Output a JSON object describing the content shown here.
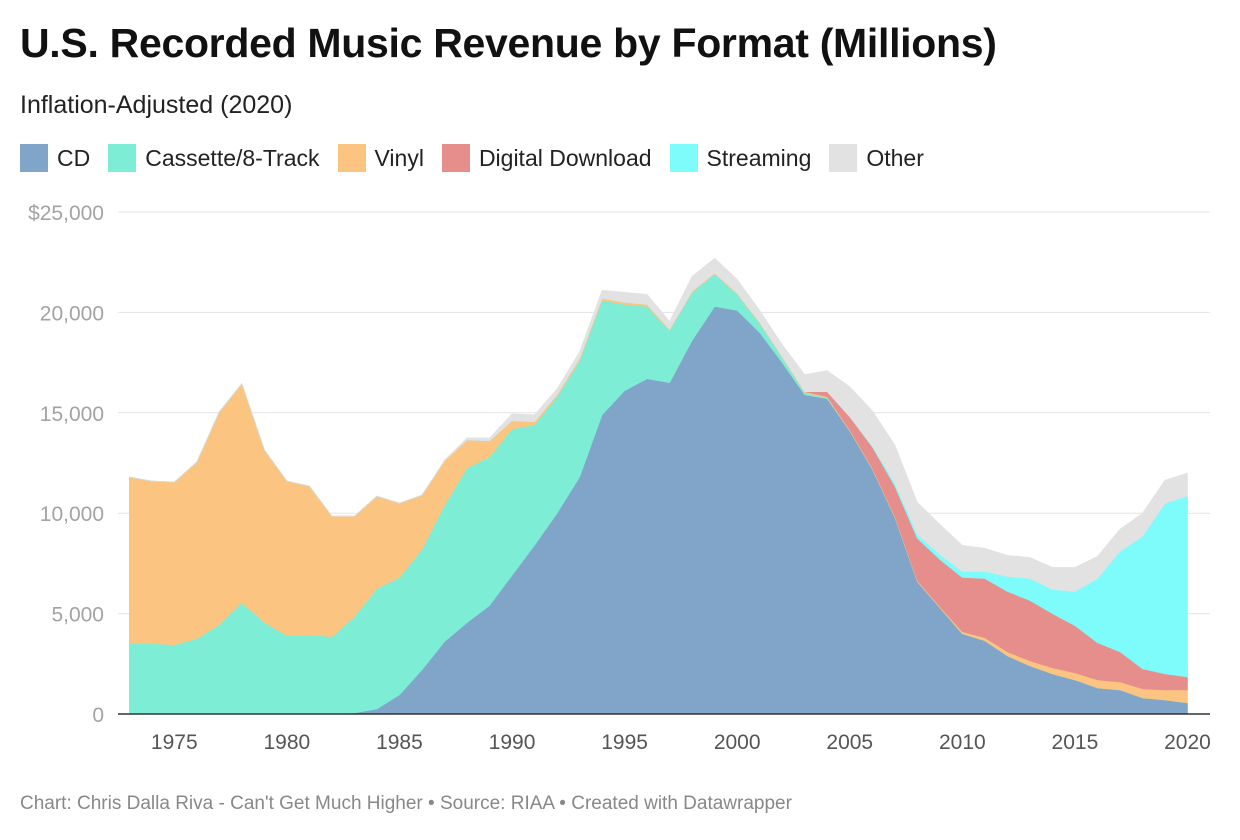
{
  "title": "U.S. Recorded Music Revenue by Format (Millions)",
  "subtitle": "Inflation-Adjusted (2020)",
  "footer": "Chart: Chris Dalla Riva - Can't Get Much Higher • Source: RIAA • Created with Datawrapper",
  "chart_data": {
    "type": "area",
    "stacked": true,
    "title": "U.S. Recorded Music Revenue by Format (Millions)",
    "subtitle": "Inflation-Adjusted (2020)",
    "x": [
      1973,
      1974,
      1975,
      1976,
      1977,
      1978,
      1979,
      1980,
      1981,
      1982,
      1983,
      1984,
      1985,
      1986,
      1987,
      1988,
      1989,
      1990,
      1991,
      1992,
      1993,
      1994,
      1995,
      1996,
      1997,
      1998,
      1999,
      2000,
      2001,
      2002,
      2003,
      2004,
      2005,
      2006,
      2007,
      2008,
      2009,
      2010,
      2011,
      2012,
      2013,
      2014,
      2015,
      2016,
      2017,
      2018,
      2019,
      2020
    ],
    "xlim": [
      1972.5,
      2021
    ],
    "ylim": [
      0,
      25000
    ],
    "y_ticks": [
      {
        "value": 0,
        "label": "0"
      },
      {
        "value": 5000,
        "label": "5,000"
      },
      {
        "value": 10000,
        "label": "10,000"
      },
      {
        "value": 15000,
        "label": "15,000"
      },
      {
        "value": 20000,
        "label": "20,000"
      },
      {
        "value": 25000,
        "label": "$25,000"
      }
    ],
    "x_ticks": [
      {
        "value": 1975,
        "label": "1975"
      },
      {
        "value": 1980,
        "label": "1980"
      },
      {
        "value": 1985,
        "label": "1985"
      },
      {
        "value": 1990,
        "label": "1990"
      },
      {
        "value": 1995,
        "label": "1995"
      },
      {
        "value": 2000,
        "label": "2000"
      },
      {
        "value": 2005,
        "label": "2005"
      },
      {
        "value": 2010,
        "label": "2010"
      },
      {
        "value": 2015,
        "label": "2015"
      },
      {
        "value": 2020,
        "label": "2020"
      }
    ],
    "grid": true,
    "legend_position": "top-left",
    "series": [
      {
        "name": "CD",
        "color": "#80a5c9",
        "values": [
          0,
          0,
          0,
          0,
          0,
          0,
          0,
          0,
          0,
          0,
          50,
          250,
          950,
          2200,
          3600,
          4550,
          5400,
          6900,
          8400,
          10000,
          11800,
          14900,
          16100,
          16700,
          16500,
          18600,
          20300,
          20100,
          19000,
          17500,
          15900,
          15700,
          14100,
          12200,
          9800,
          6600,
          5300,
          4000,
          3650,
          2900,
          2400,
          2000,
          1700,
          1300,
          1200,
          800,
          700,
          550
        ]
      },
      {
        "name": "Cassette/8-Track",
        "color": "#7deed5",
        "values": [
          3500,
          3500,
          3450,
          3750,
          4450,
          5550,
          4550,
          3900,
          3950,
          3850,
          4800,
          6000,
          5850,
          6000,
          6800,
          7700,
          7400,
          7300,
          6000,
          5800,
          5800,
          5700,
          4300,
          3600,
          2600,
          2400,
          1600,
          800,
          450,
          250,
          100,
          50,
          0,
          0,
          0,
          0,
          0,
          0,
          0,
          0,
          0,
          0,
          0,
          0,
          0,
          0,
          0,
          0
        ]
      },
      {
        "name": "Vinyl",
        "color": "#fbc581",
        "values": [
          8300,
          8100,
          8100,
          8800,
          10600,
          10900,
          8600,
          7700,
          7400,
          6000,
          5000,
          4600,
          3700,
          2700,
          2200,
          1400,
          800,
          400,
          150,
          100,
          100,
          100,
          100,
          100,
          50,
          50,
          50,
          50,
          50,
          50,
          50,
          50,
          50,
          50,
          50,
          50,
          50,
          100,
          150,
          200,
          250,
          300,
          350,
          400,
          400,
          450,
          500,
          650
        ]
      },
      {
        "name": "Digital Download",
        "color": "#e58e8b",
        "values": [
          0,
          0,
          0,
          0,
          0,
          0,
          0,
          0,
          0,
          0,
          0,
          0,
          0,
          0,
          0,
          0,
          0,
          0,
          0,
          0,
          0,
          0,
          0,
          0,
          0,
          0,
          0,
          0,
          0,
          0,
          0,
          250,
          650,
          1050,
          1500,
          2100,
          2350,
          2700,
          2950,
          3000,
          3000,
          2700,
          2350,
          1850,
          1500,
          1000,
          800,
          650
        ]
      },
      {
        "name": "Streaming",
        "color": "#7dfcfb",
        "values": [
          0,
          0,
          0,
          0,
          0,
          0,
          0,
          0,
          0,
          0,
          0,
          0,
          0,
          0,
          0,
          0,
          0,
          0,
          0,
          0,
          0,
          0,
          0,
          0,
          0,
          0,
          0,
          0,
          0,
          0,
          0,
          0,
          0,
          50,
          150,
          200,
          250,
          300,
          350,
          750,
          1100,
          1200,
          1700,
          3200,
          5000,
          6600,
          8500,
          9000
        ]
      },
      {
        "name": "Other",
        "color": "#e2e2e2",
        "values": [
          0,
          0,
          0,
          0,
          0,
          0,
          0,
          0,
          0,
          0,
          0,
          0,
          0,
          0,
          50,
          100,
          150,
          350,
          350,
          300,
          350,
          400,
          500,
          500,
          400,
          750,
          750,
          700,
          600,
          600,
          850,
          1050,
          1500,
          1750,
          1900,
          1600,
          1500,
          1300,
          1150,
          1050,
          1050,
          1100,
          1200,
          1100,
          1100,
          1150,
          1150,
          1150
        ]
      }
    ]
  }
}
